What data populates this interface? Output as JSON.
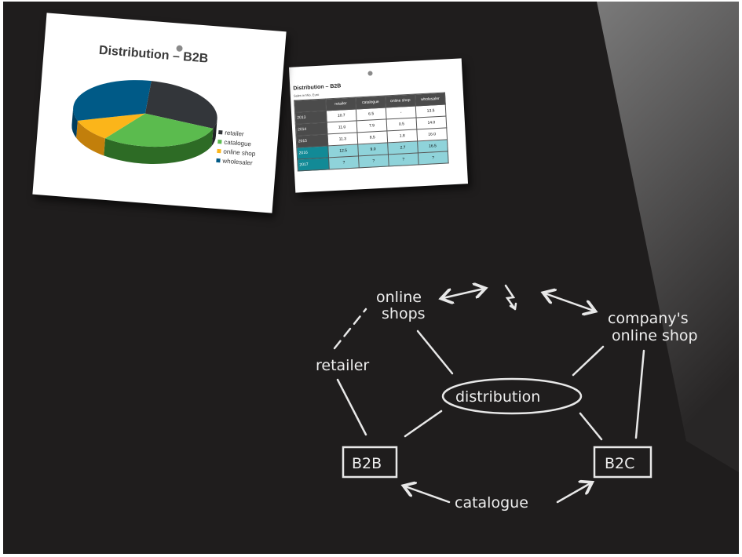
{
  "pie_card": {
    "title": "Distribution – B2B",
    "legend": [
      {
        "label": "retailer",
        "color": "#33363a"
      },
      {
        "label": "catalogue",
        "color": "#5bbb4e"
      },
      {
        "label": "online shop",
        "color": "#fbb51a"
      },
      {
        "label": "wholesaler",
        "color": "#005a87"
      }
    ]
  },
  "table_card": {
    "title": "Distribution – B2B",
    "subtitle": "Sales in Mio. Euro",
    "columns": [
      "",
      "retailer",
      "catalogue",
      "online shop",
      "wholesaler"
    ],
    "rows": [
      [
        "2013",
        "10.7",
        "6.5",
        "-",
        "13.5"
      ],
      [
        "2014",
        "11.0",
        "7.9",
        "0.5",
        "14.0"
      ],
      [
        "2015",
        "11.3",
        "8.5",
        "1.8",
        "16.0"
      ],
      [
        "2016",
        "12.5",
        "9.0",
        "2.7",
        "16.5"
      ],
      [
        "2017",
        "?",
        "?",
        "?",
        "?"
      ]
    ]
  },
  "diagram": {
    "online_shops_1": "online",
    "online_shops_2": "shops",
    "company_1": "company's",
    "company_2": "online shop",
    "retailer": "retailer",
    "distribution": "distribution",
    "b2b": "B2B",
    "b2c": "B2C",
    "catalogue": "catalogue",
    "conflict_icon": "lightning-icon"
  }
}
